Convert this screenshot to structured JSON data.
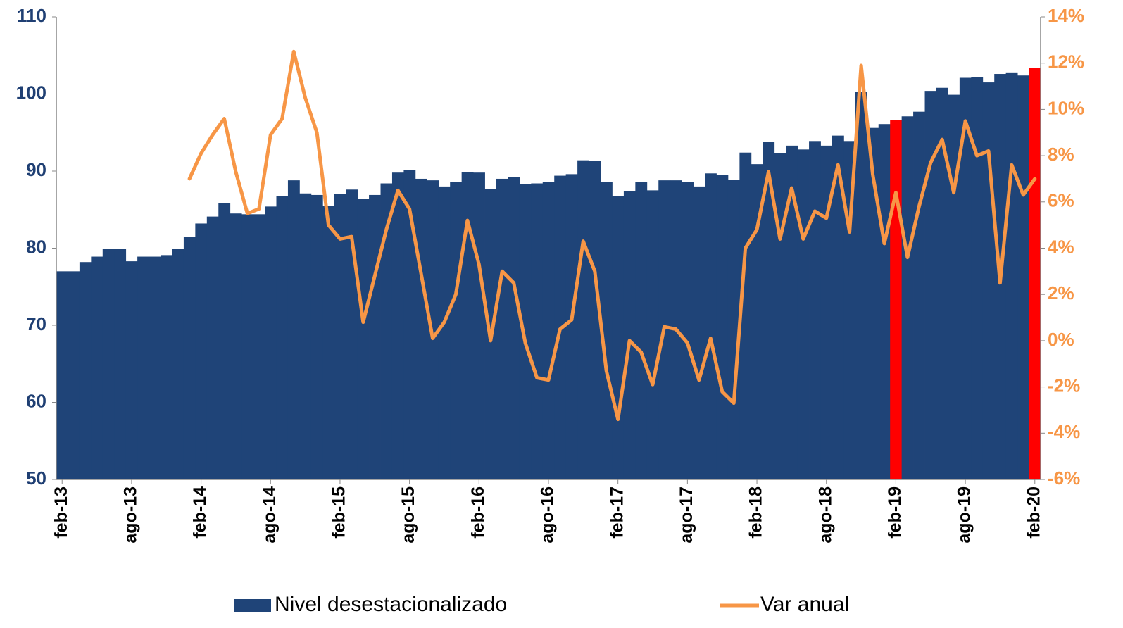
{
  "chart_data": {
    "type": "bar_line",
    "categories": [
      "feb-13",
      null,
      null,
      null,
      null,
      null,
      "ago-13",
      null,
      null,
      null,
      null,
      null,
      "feb-14",
      null,
      null,
      null,
      null,
      null,
      "ago-14",
      null,
      null,
      null,
      null,
      null,
      "feb-15",
      null,
      null,
      null,
      null,
      null,
      "ago-15",
      null,
      null,
      null,
      null,
      null,
      "feb-16",
      null,
      null,
      null,
      null,
      null,
      "ago-16",
      null,
      null,
      null,
      null,
      null,
      "feb-17",
      null,
      null,
      null,
      null,
      null,
      "ago-17",
      null,
      null,
      null,
      null,
      null,
      "feb-18",
      null,
      null,
      null,
      null,
      null,
      "ago-18",
      null,
      null,
      null,
      null,
      null,
      "feb-19",
      null,
      null,
      null,
      null,
      null,
      "ago-19",
      null,
      null,
      null,
      null,
      null,
      "feb-20"
    ],
    "series": [
      {
        "name": "Nivel desestacionalizado",
        "type": "bar",
        "color": "#1f4478",
        "values": [
          77.0,
          77.0,
          78.2,
          78.9,
          79.9,
          79.9,
          78.3,
          78.9,
          78.9,
          79.1,
          79.9,
          81.5,
          83.2,
          84.1,
          85.8,
          84.5,
          84.4,
          84.4,
          85.4,
          86.8,
          88.8,
          87.1,
          86.9,
          85.5,
          87.0,
          87.6,
          86.4,
          86.9,
          88.4,
          89.8,
          90.1,
          89.0,
          88.8,
          88.0,
          88.6,
          89.9,
          89.8,
          87.7,
          89.0,
          89.2,
          88.3,
          88.4,
          88.6,
          89.4,
          89.6,
          91.4,
          91.3,
          88.6,
          86.8,
          87.4,
          88.6,
          87.5,
          88.8,
          88.8,
          88.6,
          88.0,
          89.7,
          89.5,
          88.9,
          92.4,
          90.9,
          93.8,
          92.3,
          93.3,
          92.8,
          93.9,
          93.3,
          94.6,
          93.9,
          100.3,
          95.6,
          96.1,
          96.6,
          97.1,
          97.7,
          100.4,
          100.8,
          99.9,
          102.1,
          102.2,
          101.5,
          102.6,
          102.8,
          102.4,
          103.4
        ],
        "colors": [
          "#1f4478",
          "#1f4478",
          "#1f4478",
          "#1f4478",
          "#1f4478",
          "#1f4478",
          "#1f4478",
          "#1f4478",
          "#1f4478",
          "#1f4478",
          "#1f4478",
          "#1f4478",
          "#1f4478",
          "#1f4478",
          "#1f4478",
          "#1f4478",
          "#1f4478",
          "#1f4478",
          "#1f4478",
          "#1f4478",
          "#1f4478",
          "#1f4478",
          "#1f4478",
          "#1f4478",
          "#1f4478",
          "#1f4478",
          "#1f4478",
          "#1f4478",
          "#1f4478",
          "#1f4478",
          "#1f4478",
          "#1f4478",
          "#1f4478",
          "#1f4478",
          "#1f4478",
          "#1f4478",
          "#1f4478",
          "#1f4478",
          "#1f4478",
          "#1f4478",
          "#1f4478",
          "#1f4478",
          "#1f4478",
          "#1f4478",
          "#1f4478",
          "#1f4478",
          "#1f4478",
          "#1f4478",
          "#1f4478",
          "#1f4478",
          "#1f4478",
          "#1f4478",
          "#1f4478",
          "#1f4478",
          "#1f4478",
          "#1f4478",
          "#1f4478",
          "#1f4478",
          "#1f4478",
          "#1f4478",
          "#1f4478",
          "#1f4478",
          "#1f4478",
          "#1f4478",
          "#1f4478",
          "#1f4478",
          "#1f4478",
          "#1f4478",
          "#1f4478",
          "#1f4478",
          "#1f4478",
          "#1f4478",
          "#ff0000",
          "#1f4478",
          "#1f4478",
          "#1f4478",
          "#1f4478",
          "#1f4478",
          "#1f4478",
          "#1f4478",
          "#1f4478",
          "#1f4478",
          "#1f4478",
          "#1f4478",
          "#ff0000"
        ]
      },
      {
        "name": "Var anual",
        "type": "line",
        "axis": "y2",
        "color": "#f79646",
        "values": [
          null,
          null,
          null,
          null,
          null,
          null,
          null,
          null,
          null,
          null,
          null,
          7.0,
          8.1,
          8.9,
          9.6,
          7.3,
          5.5,
          5.7,
          8.9,
          9.6,
          12.5,
          10.5,
          9.0,
          5.0,
          4.4,
          4.5,
          0.8,
          2.8,
          4.8,
          6.5,
          5.7,
          2.9,
          0.1,
          0.8,
          2.0,
          5.2,
          3.3,
          0.0,
          3.0,
          2.5,
          -0.1,
          -1.6,
          -1.7,
          0.5,
          0.9,
          4.3,
          3.0,
          -1.3,
          -3.4,
          0.0,
          -0.5,
          -1.9,
          0.6,
          0.5,
          -0.1,
          -1.7,
          0.1,
          -2.2,
          -2.7,
          4.0,
          4.8,
          7.3,
          4.4,
          6.6,
          4.4,
          5.6,
          5.3,
          7.6,
          4.7,
          11.9,
          7.2,
          4.2,
          6.4,
          3.6,
          5.8,
          7.7,
          8.7,
          6.4,
          9.5,
          8.0,
          8.2,
          2.5,
          7.6,
          6.3,
          7.0
        ]
      }
    ],
    "ylim": [
      50,
      110
    ],
    "yticks": [
      50,
      60,
      70,
      80,
      90,
      100,
      110
    ],
    "y2lim": [
      -6,
      14
    ],
    "y2ticks": [
      {
        "value": -6,
        "label": "-6%"
      },
      {
        "value": -4,
        "label": "-4%"
      },
      {
        "value": -2,
        "label": "-2%"
      },
      {
        "value": 0,
        "label": "0%"
      },
      {
        "value": 2,
        "label": "2%"
      },
      {
        "value": 4,
        "label": "4%"
      },
      {
        "value": 6,
        "label": "6%"
      },
      {
        "value": 8,
        "label": "8%"
      },
      {
        "value": 10,
        "label": "10%"
      },
      {
        "value": 12,
        "label": "12%"
      },
      {
        "value": 14,
        "label": "14%"
      }
    ],
    "legend": "bottom"
  }
}
